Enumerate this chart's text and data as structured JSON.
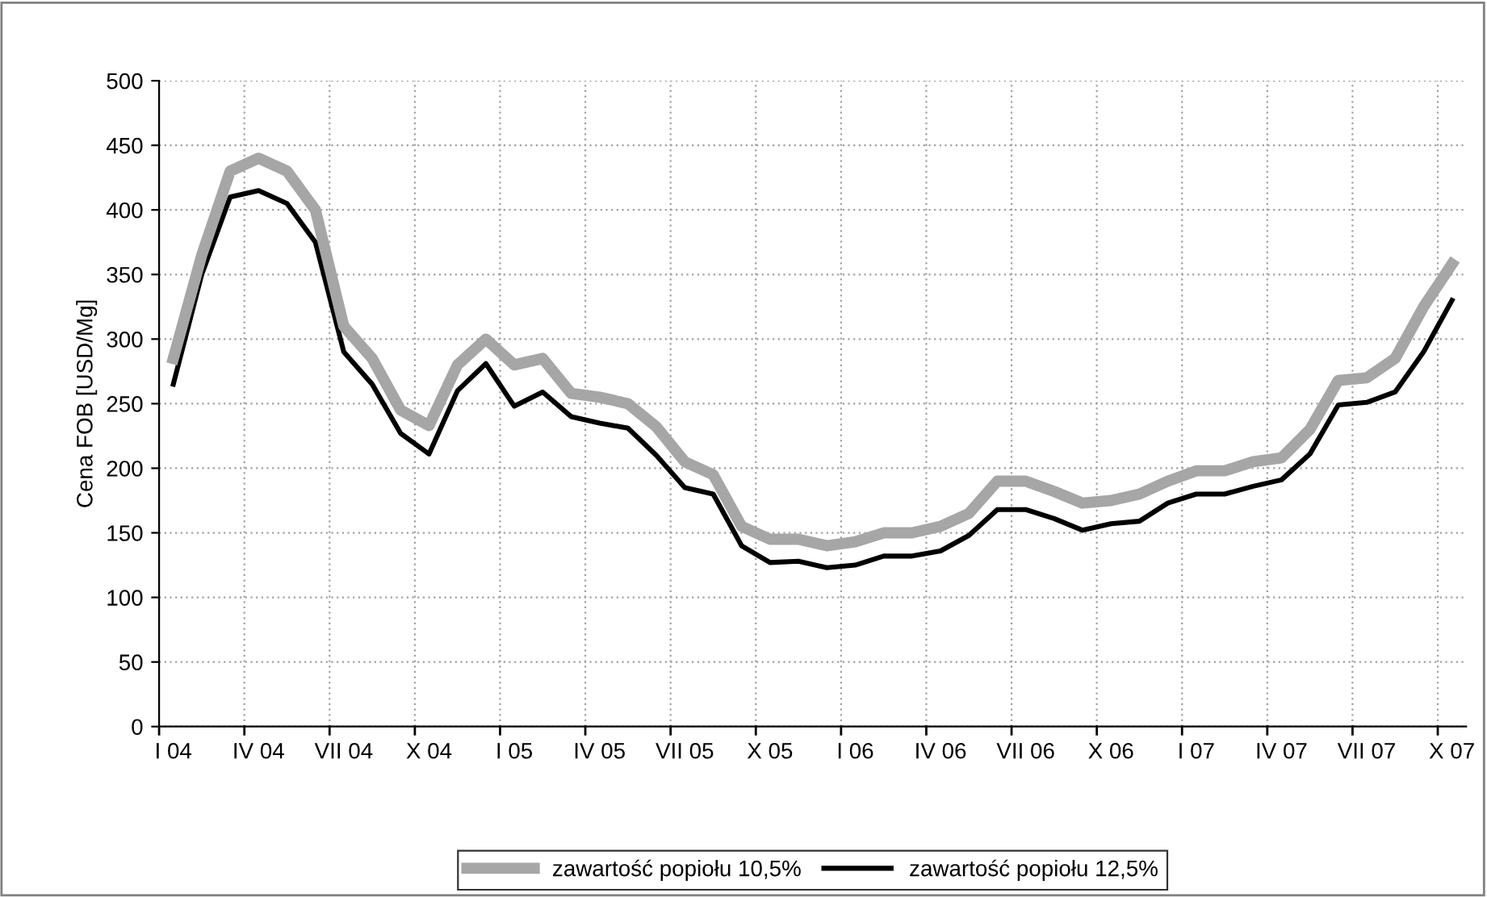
{
  "chart_data": {
    "type": "line",
    "ylabel": "Cena FOB [USD/Mg]",
    "categories": [
      "I 04",
      null,
      null,
      "IV 04",
      null,
      null,
      "VII 04",
      null,
      null,
      "X 04",
      null,
      null,
      "I 05",
      null,
      null,
      "IV 05",
      null,
      null,
      "VII 05",
      null,
      null,
      "X 05",
      null,
      null,
      "I 06",
      null,
      null,
      "IV 06",
      null,
      null,
      "VII 06",
      null,
      null,
      "X 06",
      null,
      null,
      "I 07",
      null,
      null,
      "IV 07",
      null,
      null,
      "VII 07",
      null,
      null,
      "X 07"
    ],
    "series": [
      {
        "name": "zawartość popiołu 10,5%",
        "color": "#a6a6a6",
        "values": [
          285,
          365,
          430,
          440,
          430,
          400,
          310,
          285,
          245,
          233,
          280,
          300,
          280,
          285,
          258,
          255,
          250,
          232,
          205,
          195,
          155,
          145,
          145,
          140,
          143,
          150,
          150,
          155,
          165,
          190,
          190,
          182,
          173,
          175,
          180,
          190,
          198,
          198,
          205,
          208,
          230,
          268,
          270,
          285,
          325,
          358
        ]
      },
      {
        "name": "zawartość popiołu 12,5%",
        "color": "#000000",
        "values": [
          265,
          350,
          410,
          415,
          405,
          375,
          290,
          265,
          227,
          211,
          260,
          281,
          248,
          259,
          240,
          235,
          231,
          210,
          185,
          180,
          140,
          127,
          128,
          123,
          125,
          132,
          132,
          136,
          148,
          168,
          168,
          161,
          152,
          157,
          159,
          173,
          180,
          180,
          186,
          191,
          211,
          249,
          251,
          259,
          290,
          330
        ]
      }
    ],
    "ylim": [
      0,
      500
    ],
    "yticks": [
      0,
      50,
      100,
      150,
      200,
      250,
      300,
      350,
      400,
      450,
      500
    ],
    "grid": true,
    "legend": "bottom",
    "marker": "none",
    "line_style": "solid"
  }
}
